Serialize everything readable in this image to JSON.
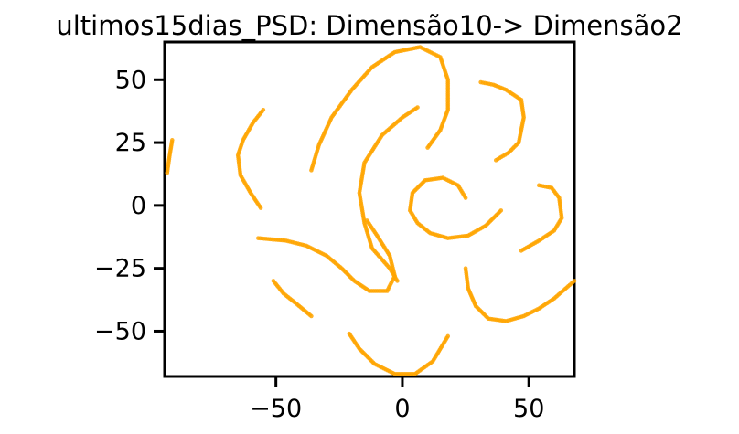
{
  "chart_data": {
    "type": "scatter",
    "title": "ultimos15dias_PSD: Dimensão10-> Dimensão2",
    "xlabel": "",
    "ylabel": "",
    "xlim": [
      -94,
      68
    ],
    "ylim": [
      -68,
      65
    ],
    "xticks": [
      -50,
      0,
      50
    ],
    "yticks": [
      -50,
      -25,
      0,
      25,
      50
    ],
    "xtick_labels": [
      "−50",
      "0",
      "50"
    ],
    "ytick_labels": [
      "−50",
      "−25",
      "0",
      "25",
      "50"
    ],
    "grid": false,
    "legend": "none",
    "marker_color": "#ffa500",
    "series": [
      {
        "points": [
          [
            -93,
            13
          ],
          [
            -92,
            20
          ],
          [
            -91,
            26
          ]
        ]
      },
      {
        "points": [
          [
            -55,
            38
          ],
          [
            -59,
            33
          ],
          [
            -63,
            26
          ],
          [
            -65,
            20
          ],
          [
            -64,
            12
          ],
          [
            -60,
            5
          ],
          [
            -56,
            -1
          ]
        ]
      },
      {
        "points": [
          [
            -36,
            14
          ],
          [
            -33,
            24
          ],
          [
            -28,
            35
          ],
          [
            -20,
            46
          ],
          [
            -12,
            55
          ],
          [
            -3,
            61
          ],
          [
            7,
            63
          ],
          [
            15,
            59
          ],
          [
            18,
            50
          ],
          [
            18,
            38
          ],
          [
            15,
            30
          ],
          [
            10,
            23
          ]
        ]
      },
      {
        "points": [
          [
            6,
            39
          ],
          [
            0,
            35
          ],
          [
            -8,
            28
          ],
          [
            -15,
            17
          ],
          [
            -17,
            5
          ],
          [
            -15,
            -7
          ],
          [
            -12,
            -17
          ],
          [
            -5,
            -25
          ],
          [
            -2,
            -30
          ]
        ]
      },
      {
        "points": [
          [
            -57,
            -13
          ],
          [
            -46,
            -14
          ],
          [
            -38,
            -16
          ],
          [
            -30,
            -20
          ],
          [
            -24,
            -25
          ],
          [
            -19,
            -30
          ],
          [
            -13,
            -34
          ],
          [
            -6,
            -34
          ],
          [
            -3,
            -28
          ],
          [
            -5,
            -20
          ],
          [
            -10,
            -12
          ],
          [
            -14,
            -6
          ]
        ]
      },
      {
        "points": [
          [
            -51,
            -30
          ],
          [
            -47,
            -35
          ],
          [
            -42,
            -39
          ],
          [
            -36,
            -44
          ]
        ]
      },
      {
        "points": [
          [
            -21,
            -51
          ],
          [
            -17,
            -57
          ],
          [
            -11,
            -63
          ],
          [
            -3,
            -67
          ],
          [
            5,
            -67
          ],
          [
            12,
            -62
          ],
          [
            18,
            -52
          ]
        ]
      },
      {
        "points": [
          [
            25,
            3
          ],
          [
            22,
            8
          ],
          [
            16,
            11
          ],
          [
            9,
            10
          ],
          [
            4,
            5
          ],
          [
            3,
            -2
          ],
          [
            6,
            -7
          ],
          [
            11,
            -11
          ],
          [
            18,
            -13
          ],
          [
            26,
            -12
          ],
          [
            33,
            -8
          ],
          [
            39,
            -2
          ]
        ]
      },
      {
        "points": [
          [
            31,
            49
          ],
          [
            36,
            48
          ],
          [
            41,
            46
          ],
          [
            47,
            42
          ],
          [
            48,
            35
          ],
          [
            46,
            25
          ],
          [
            42,
            21
          ],
          [
            37,
            18
          ]
        ]
      },
      {
        "points": [
          [
            54,
            8
          ],
          [
            59,
            7
          ],
          [
            62,
            3
          ],
          [
            63,
            -5
          ],
          [
            60,
            -10
          ],
          [
            54,
            -14
          ],
          [
            47,
            -18
          ]
        ]
      },
      {
        "points": [
          [
            25,
            -25
          ],
          [
            26,
            -33
          ],
          [
            29,
            -40
          ],
          [
            34,
            -45
          ],
          [
            41,
            -46
          ],
          [
            48,
            -44
          ],
          [
            54,
            -41
          ],
          [
            60,
            -37
          ],
          [
            68,
            -30
          ]
        ]
      }
    ]
  }
}
